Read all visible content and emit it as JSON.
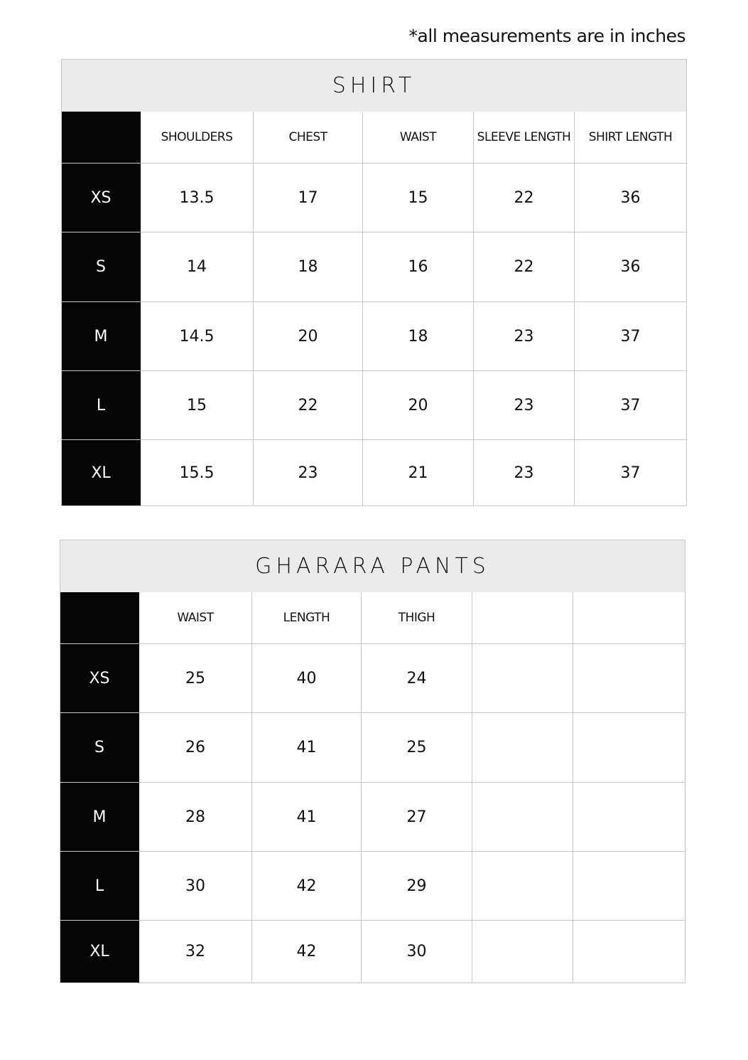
{
  "note": "*all measurements are in inches",
  "tables": [
    {
      "title": "SHIRT",
      "headers": [
        "SHOULDERS",
        "CHEST",
        "WAIST",
        "SLEEVE LENGTH",
        "SHIRT LENGTH"
      ],
      "rows": [
        {
          "size": "XS",
          "values": [
            "13.5",
            "17",
            "15",
            "22",
            "36"
          ]
        },
        {
          "size": "S",
          "values": [
            "14",
            "18",
            "16",
            "22",
            "36"
          ]
        },
        {
          "size": "M",
          "values": [
            "14.5",
            "20",
            "18",
            "23",
            "37"
          ]
        },
        {
          "size": "L",
          "values": [
            "15",
            "22",
            "20",
            "23",
            "37"
          ]
        },
        {
          "size": "XL",
          "values": [
            "15.5",
            "23",
            "21",
            "23",
            "37"
          ]
        }
      ]
    },
    {
      "title": "GHARARA PANTS",
      "headers": [
        "WAIST",
        "LENGTH",
        "THIGH",
        "",
        ""
      ],
      "rows": [
        {
          "size": "XS",
          "values": [
            "25",
            "40",
            "24",
            "",
            ""
          ]
        },
        {
          "size": "S",
          "values": [
            "26",
            "41",
            "25",
            "",
            ""
          ]
        },
        {
          "size": "M",
          "values": [
            "28",
            "41",
            "27",
            "",
            ""
          ]
        },
        {
          "size": "L",
          "values": [
            "30",
            "42",
            "29",
            "",
            ""
          ]
        },
        {
          "size": "XL",
          "values": [
            "32",
            "42",
            "30",
            "",
            ""
          ]
        }
      ]
    }
  ]
}
